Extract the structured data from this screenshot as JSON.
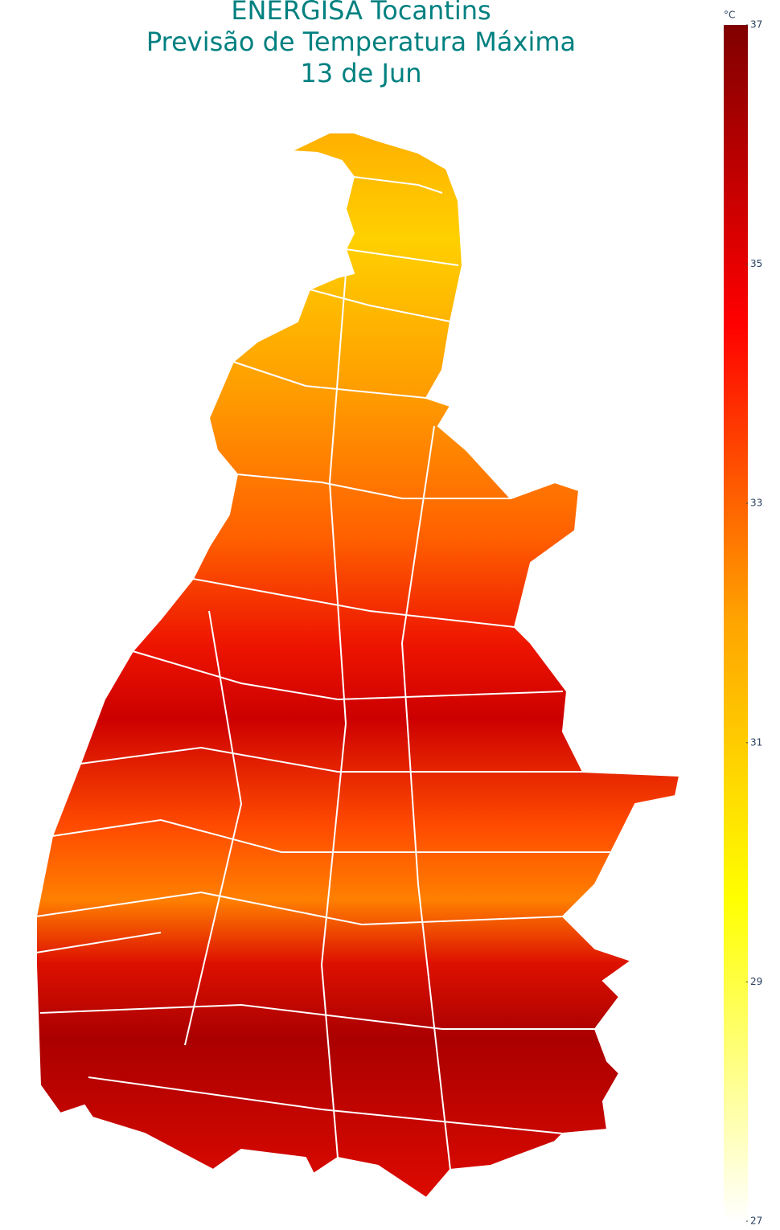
{
  "title": [
    "ENERGISA Tocantins",
    "Previsão de Temperatura Máxima",
    "13 de Jun"
  ],
  "colorbar": {
    "unit": "°C",
    "range": [
      27,
      37
    ],
    "ticks": [
      27,
      29,
      31,
      33,
      35,
      37
    ],
    "colorscale": [
      [
        27,
        "#ffffff"
      ],
      [
        29.7,
        "#ffff00"
      ],
      [
        32,
        "#ffa500"
      ],
      [
        34.5,
        "#ff0000"
      ],
      [
        37,
        "#800000"
      ]
    ]
  }
}
